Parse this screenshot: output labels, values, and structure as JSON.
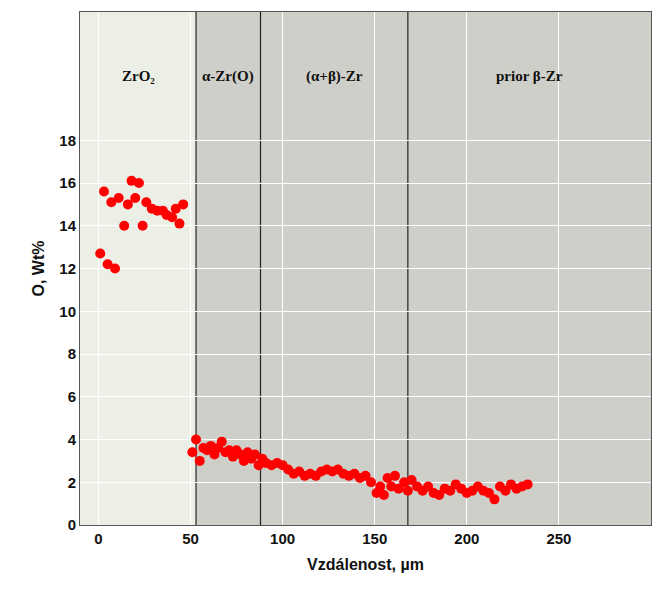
{
  "chart_data": {
    "type": "scatter",
    "x_label": "Vzdálenost, µm",
    "y_label": "O, Wt%",
    "color": "#ff0000",
    "marker": "circle",
    "grid": true,
    "x": [
      1,
      5,
      9,
      3,
      7,
      11,
      14,
      16,
      18,
      20,
      22,
      24,
      26,
      29,
      32,
      35,
      37,
      40,
      42,
      44,
      46,
      51,
      53,
      55,
      57,
      59,
      61,
      63,
      65,
      67,
      69,
      71,
      73,
      75,
      77,
      79,
      81,
      83,
      85,
      87,
      89,
      91,
      94,
      97,
      100,
      103,
      106,
      109,
      112,
      115,
      118,
      121,
      124,
      127,
      130,
      133,
      136,
      139,
      142,
      145,
      148,
      151,
      153,
      155,
      157,
      159,
      161,
      163,
      166,
      168,
      170,
      173,
      176,
      179,
      182,
      185,
      188,
      191,
      194,
      197,
      200,
      203,
      206,
      209,
      212,
      215,
      218,
      221,
      224,
      227,
      230,
      233
    ],
    "values": [
      12.7,
      12.2,
      12.0,
      15.6,
      15.1,
      15.3,
      14.0,
      15.0,
      16.1,
      15.3,
      16.0,
      14.0,
      15.1,
      14.8,
      14.7,
      14.7,
      14.5,
      14.4,
      14.8,
      14.1,
      15.0,
      3.4,
      4.0,
      3.0,
      3.6,
      3.5,
      3.7,
      3.3,
      3.6,
      3.9,
      3.4,
      3.5,
      3.2,
      3.5,
      3.3,
      3.0,
      3.4,
      3.1,
      3.3,
      2.8,
      3.1,
      2.9,
      2.8,
      2.9,
      2.8,
      2.6,
      2.4,
      2.5,
      2.3,
      2.4,
      2.3,
      2.5,
      2.6,
      2.5,
      2.6,
      2.4,
      2.3,
      2.4,
      2.2,
      2.3,
      2.0,
      1.5,
      1.8,
      1.4,
      2.2,
      1.8,
      2.3,
      1.7,
      2.0,
      1.6,
      2.1,
      1.8,
      1.6,
      1.8,
      1.5,
      1.4,
      1.7,
      1.6,
      1.9,
      1.7,
      1.5,
      1.6,
      1.8,
      1.6,
      1.5,
      1.2,
      1.8,
      1.6,
      1.9,
      1.7,
      1.8,
      1.9
    ],
    "xlim": [
      -10,
      300
    ],
    "xticks": [
      0,
      50,
      100,
      150,
      200,
      250
    ],
    "ylim": [
      0,
      24
    ],
    "yticks": [
      0,
      2,
      4,
      6,
      8,
      10,
      12,
      14,
      16,
      18
    ],
    "region_labels": [
      "ZrO₂",
      "α-Zr(O)",
      "(α+β)-Zr",
      "prior β-Zr"
    ],
    "region_boundaries": [
      53,
      88,
      168
    ]
  }
}
